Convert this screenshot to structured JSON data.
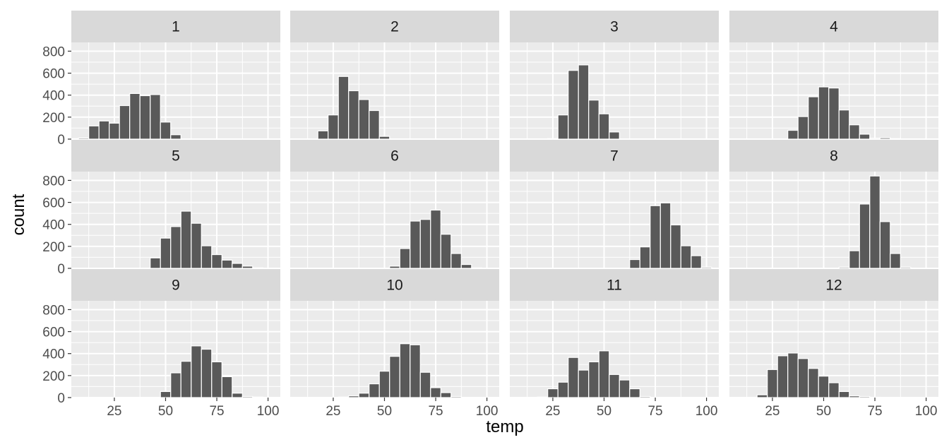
{
  "chart_data": {
    "type": "histogram",
    "layout": "facet_wrap",
    "ncol": 4,
    "xlabel": "temp",
    "ylabel": "count",
    "xlim": [
      4,
      106
    ],
    "ylim": [
      0,
      880
    ],
    "x_ticks": [
      25,
      50,
      75,
      100
    ],
    "y_ticks": [
      0,
      200,
      400,
      600,
      800
    ],
    "bin_width": 5,
    "colors": {
      "panel_background": "#ebebeb",
      "grid_line": "#ffffff",
      "strip_background": "#d9d9d9",
      "bar_fill": "#595959",
      "bar_outline": "#ffffff",
      "tick_mark": "#333333"
    },
    "facets": [
      {
        "label": "1",
        "bins": [
          [
            5,
            5
          ],
          [
            10,
            10
          ],
          [
            15,
            120
          ],
          [
            20,
            165
          ],
          [
            25,
            145
          ],
          [
            30,
            305
          ],
          [
            35,
            415
          ],
          [
            40,
            395
          ],
          [
            45,
            405
          ],
          [
            50,
            155
          ],
          [
            55,
            40
          ],
          [
            60,
            3
          ]
        ]
      },
      {
        "label": "2",
        "bins": [
          [
            20,
            75
          ],
          [
            25,
            220
          ],
          [
            30,
            570
          ],
          [
            35,
            440
          ],
          [
            40,
            360
          ],
          [
            45,
            260
          ],
          [
            50,
            25
          ],
          [
            55,
            2
          ]
        ]
      },
      {
        "label": "3",
        "bins": [
          [
            25,
            5
          ],
          [
            30,
            220
          ],
          [
            35,
            625
          ],
          [
            40,
            675
          ],
          [
            45,
            355
          ],
          [
            50,
            230
          ],
          [
            55,
            65
          ],
          [
            60,
            3
          ]
        ]
      },
      {
        "label": "4",
        "bins": [
          [
            30,
            3
          ],
          [
            35,
            80
          ],
          [
            40,
            205
          ],
          [
            45,
            385
          ],
          [
            50,
            475
          ],
          [
            55,
            465
          ],
          [
            60,
            265
          ],
          [
            65,
            130
          ],
          [
            70,
            45
          ],
          [
            75,
            8
          ],
          [
            80,
            12
          ],
          [
            85,
            5
          ]
        ]
      },
      {
        "label": "5",
        "bins": [
          [
            45,
            95
          ],
          [
            50,
            275
          ],
          [
            55,
            380
          ],
          [
            60,
            520
          ],
          [
            65,
            410
          ],
          [
            70,
            205
          ],
          [
            75,
            125
          ],
          [
            80,
            75
          ],
          [
            85,
            45
          ],
          [
            90,
            20
          ],
          [
            95,
            5
          ]
        ]
      },
      {
        "label": "6",
        "bins": [
          [
            55,
            20
          ],
          [
            60,
            180
          ],
          [
            65,
            430
          ],
          [
            70,
            445
          ],
          [
            75,
            530
          ],
          [
            80,
            310
          ],
          [
            85,
            135
          ],
          [
            90,
            35
          ],
          [
            95,
            4
          ]
        ]
      },
      {
        "label": "7",
        "bins": [
          [
            65,
            80
          ],
          [
            70,
            195
          ],
          [
            75,
            570
          ],
          [
            80,
            595
          ],
          [
            85,
            395
          ],
          [
            90,
            205
          ],
          [
            95,
            115
          ],
          [
            100,
            10
          ]
        ]
      },
      {
        "label": "8",
        "bins": [
          [
            60,
            10
          ],
          [
            65,
            160
          ],
          [
            70,
            585
          ],
          [
            75,
            840
          ],
          [
            80,
            425
          ],
          [
            85,
            135
          ],
          [
            90,
            10
          ]
        ]
      },
      {
        "label": "9",
        "bins": [
          [
            50,
            55
          ],
          [
            55,
            225
          ],
          [
            60,
            330
          ],
          [
            65,
            470
          ],
          [
            70,
            440
          ],
          [
            75,
            325
          ],
          [
            80,
            190
          ],
          [
            85,
            40
          ],
          [
            90,
            10
          ],
          [
            95,
            5
          ]
        ]
      },
      {
        "label": "10",
        "bins": [
          [
            30,
            5
          ],
          [
            35,
            15
          ],
          [
            40,
            40
          ],
          [
            45,
            125
          ],
          [
            50,
            240
          ],
          [
            55,
            375
          ],
          [
            60,
            490
          ],
          [
            65,
            480
          ],
          [
            70,
            230
          ],
          [
            75,
            90
          ],
          [
            80,
            45
          ],
          [
            85,
            10
          ]
        ]
      },
      {
        "label": "11",
        "bins": [
          [
            20,
            5
          ],
          [
            25,
            80
          ],
          [
            30,
            140
          ],
          [
            35,
            365
          ],
          [
            40,
            250
          ],
          [
            45,
            325
          ],
          [
            50,
            425
          ],
          [
            55,
            210
          ],
          [
            60,
            160
          ],
          [
            65,
            80
          ],
          [
            70,
            10
          ]
        ]
      },
      {
        "label": "12",
        "bins": [
          [
            20,
            25
          ],
          [
            25,
            255
          ],
          [
            30,
            380
          ],
          [
            35,
            405
          ],
          [
            40,
            355
          ],
          [
            45,
            265
          ],
          [
            50,
            195
          ],
          [
            55,
            135
          ],
          [
            60,
            55
          ],
          [
            65,
            15
          ],
          [
            70,
            10
          ],
          [
            75,
            3
          ]
        ]
      }
    ]
  }
}
